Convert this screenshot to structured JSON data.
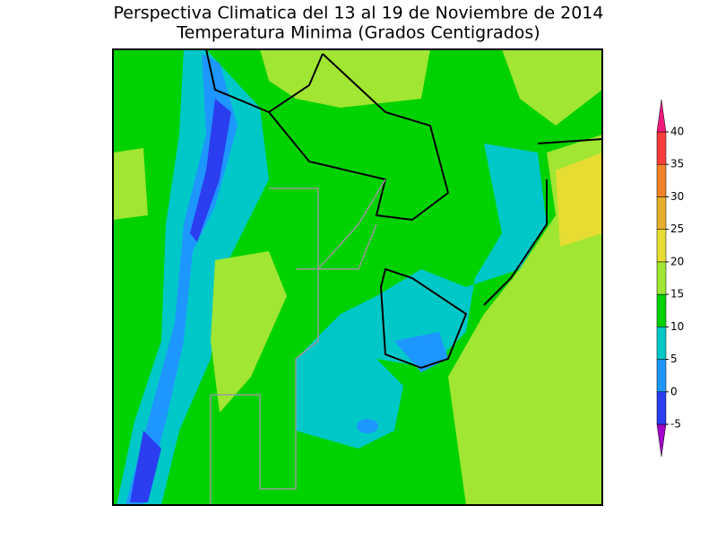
{
  "title": [
    "Perspectiva Climatica del 13 al 19 de Noviembre de 2014",
    "Temperatura Minima (Grados Centigrados)"
  ],
  "colorbar": {
    "levels": [
      -5,
      0,
      5,
      10,
      15,
      20,
      25,
      30,
      35,
      40
    ],
    "colors": [
      "#a000c8",
      "#2a3ef0",
      "#1e96ff",
      "#00c8c8",
      "#00d200",
      "#a0e632",
      "#e6dc32",
      "#e6af2d",
      "#f08228",
      "#fa3c3c",
      "#f0197f"
    ]
  }
}
